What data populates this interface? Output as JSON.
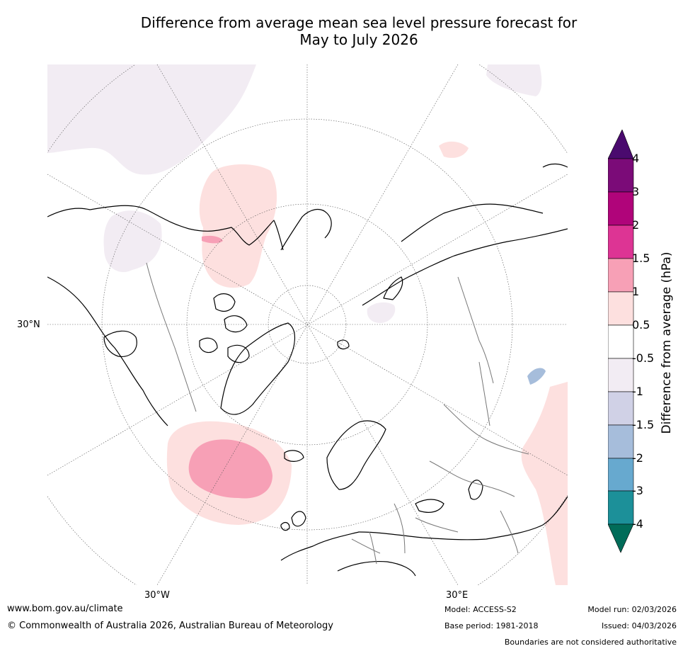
{
  "title": {
    "line1": "Difference from average mean sea level pressure forecast for",
    "line2": "May to July 2026"
  },
  "map": {
    "projection": "north polar stereographic",
    "graticule_labels": {
      "lat_30n": "30°N",
      "lon_30w": "30°W",
      "lon_30e": "30°E"
    },
    "anomaly_regions": [
      {
        "name": "north-pacific-weak-low",
        "class": "-1 to -0.5 hPa"
      },
      {
        "name": "bering-sea-high",
        "class": "0.5 to 1 hPa"
      },
      {
        "name": "bering-core",
        "class": "1 to 1.5 hPa"
      },
      {
        "name": "canada-high",
        "class": "0.5 to 1 hPa"
      },
      {
        "name": "north-atlantic-high",
        "class": "0.5 to 1 hPa"
      },
      {
        "name": "north-atlantic-core",
        "class": "1 to 1.5 hPa"
      },
      {
        "name": "barents-weak-low",
        "class": "-1 to -0.5 hPa"
      },
      {
        "name": "central-asia-low",
        "class": "-2 to -1.5 hPa"
      },
      {
        "name": "south-asia-high",
        "class": "0.5 to 1 hPa"
      }
    ]
  },
  "colorbar": {
    "title": "Difference from average (hPa)",
    "levels": [
      "4",
      "3",
      "2",
      "1.5",
      "1",
      "0.5",
      "-0.5",
      "-1",
      "-1.5",
      "-2",
      "-3",
      "-4"
    ],
    "colors": {
      "extend_top": "#4a0a6e",
      "bin_3_4": "#7b0b78",
      "bin_2_3": "#b0047a",
      "bin_15_2": "#dd3494",
      "bin_1_15": "#f7a0b6",
      "bin_05_1": "#fde0df",
      "bin_neutral": "#ffffff",
      "bin_m1_m05": "#f2ecf3",
      "bin_m15_m1": "#d0d1e6",
      "bin_m2_m15": "#a6bddb",
      "bin_m3_m2": "#67a9cf",
      "bin_m4_m3": "#1c9099",
      "extend_bottom": "#016c59"
    }
  },
  "footer": {
    "url": "www.bom.gov.au/climate",
    "copyright": "© Commonwealth of Australia 2026, Australian Bureau of Meteorology",
    "model": "Model: ACCESS-S2",
    "base_period": "Base period: 1981-2018",
    "model_run": "Model run: 02/03/2026",
    "issued": "Issued: 04/03/2026",
    "disclaimer": "Boundaries are not considered authoritative"
  }
}
